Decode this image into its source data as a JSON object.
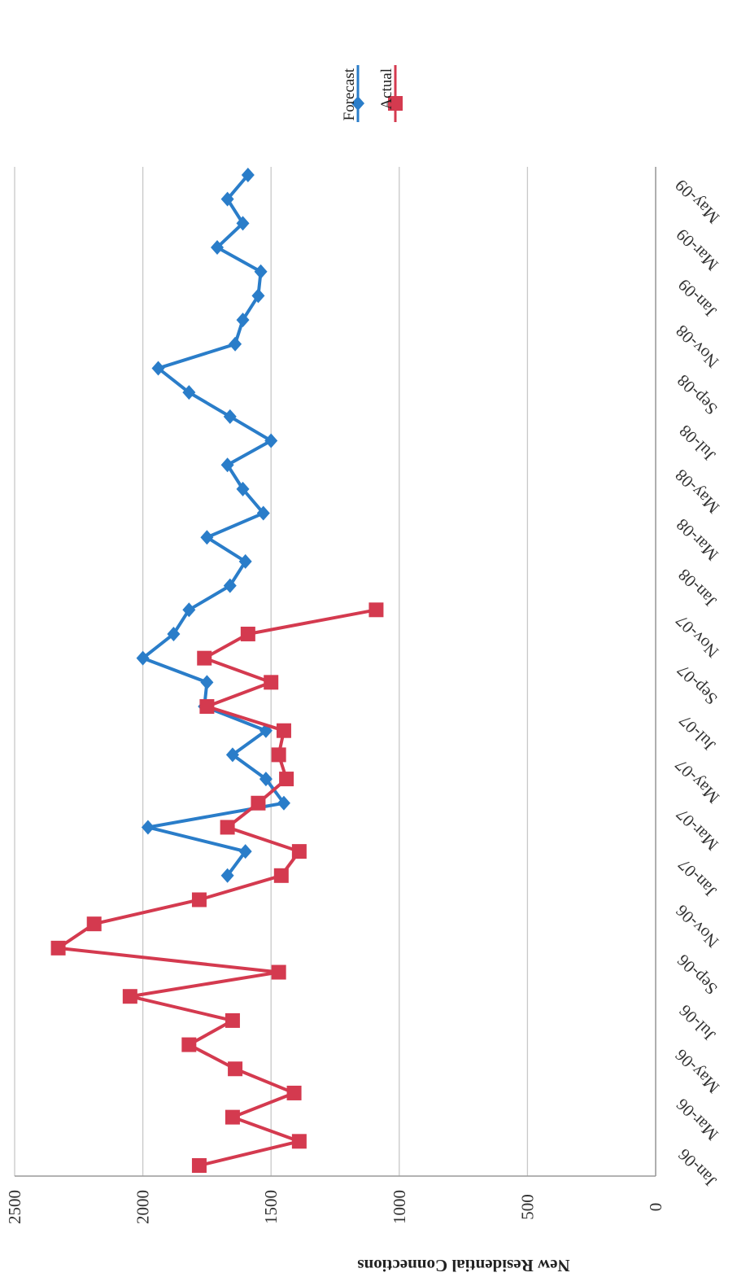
{
  "chart_data": {
    "type": "line",
    "orientation": "rotated 90 degrees clockwise",
    "ylabel": "New Residential Connections",
    "xlabel": "",
    "ylim": [
      0,
      2500
    ],
    "yticks": [
      0,
      500,
      1000,
      1500,
      2000,
      2500
    ],
    "grid": true,
    "legend_position": "top-right",
    "categories": [
      "Jan-06",
      "Feb-06",
      "Mar-06",
      "Apr-06",
      "May-06",
      "Jun-06",
      "Jul-06",
      "Aug-06",
      "Sep-06",
      "Oct-06",
      "Nov-06",
      "Dec-06",
      "Jan-07",
      "Feb-07",
      "Mar-07",
      "Apr-07",
      "May-07",
      "Jun-07",
      "Jul-07",
      "Aug-07",
      "Sep-07",
      "Oct-07",
      "Nov-07",
      "Dec-07",
      "Jan-08",
      "Feb-08",
      "Mar-08",
      "Apr-08",
      "May-08",
      "Jun-08",
      "Jul-08",
      "Aug-08",
      "Sep-08",
      "Oct-08",
      "Nov-08",
      "Dec-08",
      "Jan-09",
      "Feb-09",
      "Mar-09",
      "Apr-09",
      "May-09",
      "Jun-09"
    ],
    "tick_labels": [
      "Jan-06",
      "Mar-06",
      "May-06",
      "Jul-06",
      "Sep-06",
      "Nov-06",
      "Jan-07",
      "Mar-07",
      "May-07",
      "Jul-07",
      "Sep-07",
      "Nov-07",
      "Jan-08",
      "Mar-08",
      "May-08",
      "Jul-08",
      "Sep-08",
      "Nov-08",
      "Jan-09",
      "Mar-09",
      "May-09"
    ],
    "series": [
      {
        "name": "Forecast",
        "color": "#2a7dc9",
        "marker": "diamond",
        "values": [
          null,
          null,
          null,
          null,
          null,
          null,
          null,
          null,
          null,
          null,
          null,
          null,
          1670,
          1600,
          1980,
          1450,
          1520,
          1650,
          1520,
          1760,
          1750,
          2000,
          1880,
          1820,
          1660,
          1600,
          1750,
          1530,
          1610,
          1670,
          1500,
          1660,
          1820,
          1940,
          1640,
          1610,
          1550,
          1540,
          1710,
          1610,
          1670,
          1590
        ]
      },
      {
        "name": "Actual",
        "color": "#d43a4f",
        "marker": "square",
        "values": [
          1780,
          1390,
          1650,
          1410,
          1640,
          1820,
          1650,
          2050,
          1470,
          2330,
          2190,
          1780,
          1460,
          1390,
          1670,
          1550,
          1440,
          1470,
          1450,
          1750,
          1500,
          1760,
          1590,
          1090,
          null,
          null,
          null,
          null,
          null,
          null,
          null,
          null,
          null,
          null,
          null,
          null,
          null,
          null,
          null,
          null,
          null,
          null
        ]
      }
    ]
  }
}
